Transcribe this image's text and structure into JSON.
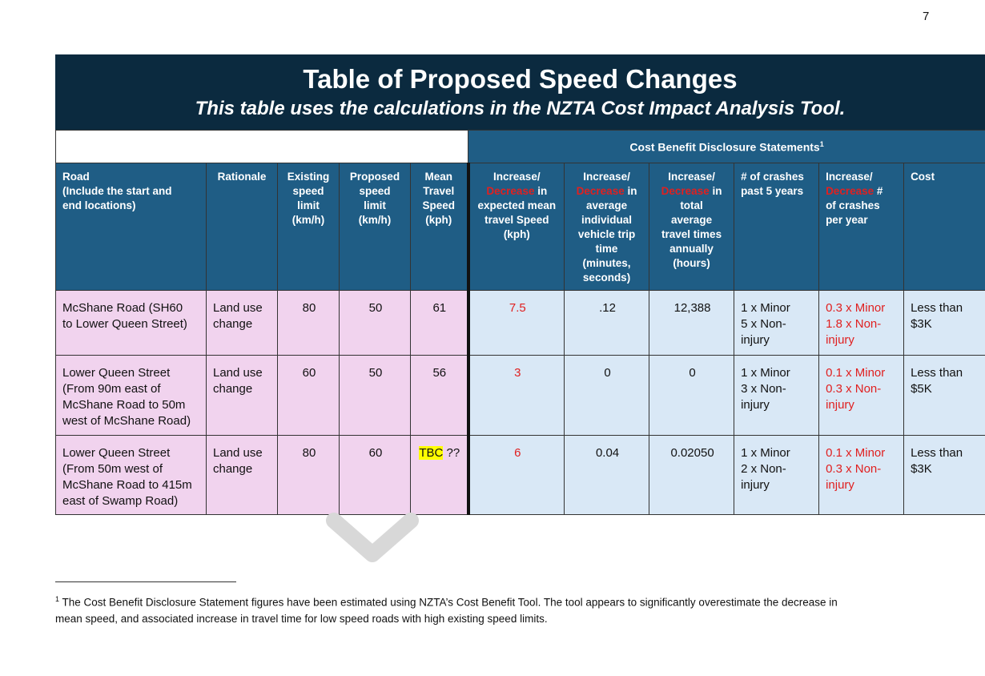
{
  "page_number": "7",
  "title": {
    "main": "Table of Proposed Speed Changes",
    "sub": "This table uses the calculations in the NZTA Cost Impact Analysis Tool."
  },
  "cbd_header": "Cost Benefit Disclosure Statements",
  "cbd_marker": "1",
  "columns": {
    "road": [
      "Road",
      "(Include the start and",
      "end locations)"
    ],
    "rationale": "Rationale",
    "existing": [
      "Existing",
      "speed",
      "limit",
      "(km/h)"
    ],
    "proposed": [
      "Proposed",
      "speed",
      "limit",
      "(km/h)"
    ],
    "mean": [
      "Mean",
      "Travel",
      "Speed",
      "(kph)"
    ],
    "speed_change": {
      "a": "Increase/",
      "b": "Decrease",
      "c": " in",
      "rest": [
        "expected mean",
        "travel Speed",
        "(kph)"
      ]
    },
    "trip_time": {
      "a": "Increase/",
      "b": "Decrease",
      "c": " in",
      "rest": [
        "average",
        "individual",
        "vehicle trip",
        "time",
        "(minutes,",
        "seconds)"
      ]
    },
    "travel_times": {
      "a": "Increase/",
      "b": "Decrease",
      "c": " in",
      "rest": [
        "total",
        "average",
        "travel times",
        "annually",
        "(hours)"
      ]
    },
    "crashes_past": [
      "# of crashes",
      "past 5 years"
    ],
    "crashes_change": {
      "a": "Increase/",
      "b": "Decrease",
      "c": " #",
      "rest": [
        "of crashes",
        "per year"
      ]
    },
    "cost": "Cost"
  },
  "rows": [
    {
      "road": [
        "McShane Road (SH60",
        "to Lower Queen Street)"
      ],
      "rationale": [
        "Land use",
        "change"
      ],
      "existing": "80",
      "proposed": "50",
      "mean": "61",
      "mean_note": "",
      "speed_change": "7.5",
      "trip_time": ".12",
      "travel_times": "12,388",
      "crashes_past": [
        "1 x Minor",
        "5 x Non-",
        "injury"
      ],
      "crashes_change": [
        "0.3 x Minor",
        "1.8 x Non-",
        "injury"
      ],
      "cost": [
        "Less than",
        "$3K"
      ]
    },
    {
      "road": [
        "Lower Queen Street",
        "(From 90m east of",
        "McShane Road to 50m",
        "west of McShane Road)"
      ],
      "rationale": [
        "Land use",
        "change"
      ],
      "existing": "60",
      "proposed": "50",
      "mean": "56",
      "mean_note": "",
      "speed_change": "3",
      "trip_time": "0",
      "travel_times": "0",
      "crashes_past": [
        "1 x Minor",
        "3 x Non-",
        "injury"
      ],
      "crashes_change": [
        "0.1 x Minor",
        "0.3 x Non-",
        "injury"
      ],
      "cost": [
        "Less than",
        "$5K"
      ]
    },
    {
      "road": [
        "Lower Queen Street",
        "(From 50m west of",
        "McShane Road to 415m",
        "east of Swamp Road)"
      ],
      "rationale": [
        "Land use",
        "change"
      ],
      "existing": "80",
      "proposed": "60",
      "mean": "TBC",
      "mean_note": " ??",
      "speed_change": "6",
      "trip_time": "0.04",
      "travel_times": "0.02050",
      "crashes_past": [
        "1 x Minor",
        "2 x Non-",
        "injury"
      ],
      "crashes_change": [
        "0.1 x Minor",
        "0.3 x Non-",
        "injury"
      ],
      "cost": [
        "Less than",
        "$3K"
      ]
    }
  ],
  "footnote": {
    "marker": "1",
    "line1": " The Cost Benefit Disclosure Statement figures have been estimated using NZTA’s Cost Benefit Tool.  The tool appears to significantly overestimate the decrease in",
    "line2": "mean speed, and associated increase in travel time for low speed roads with high existing speed limits."
  },
  "colors": {
    "header_dark": "#0b2a3f",
    "header_blue": "#1f5d85",
    "pink": "#f1d3ee",
    "light_blue": "#d9e8f6",
    "red": "#e02020",
    "highlight": "#ffff00"
  }
}
